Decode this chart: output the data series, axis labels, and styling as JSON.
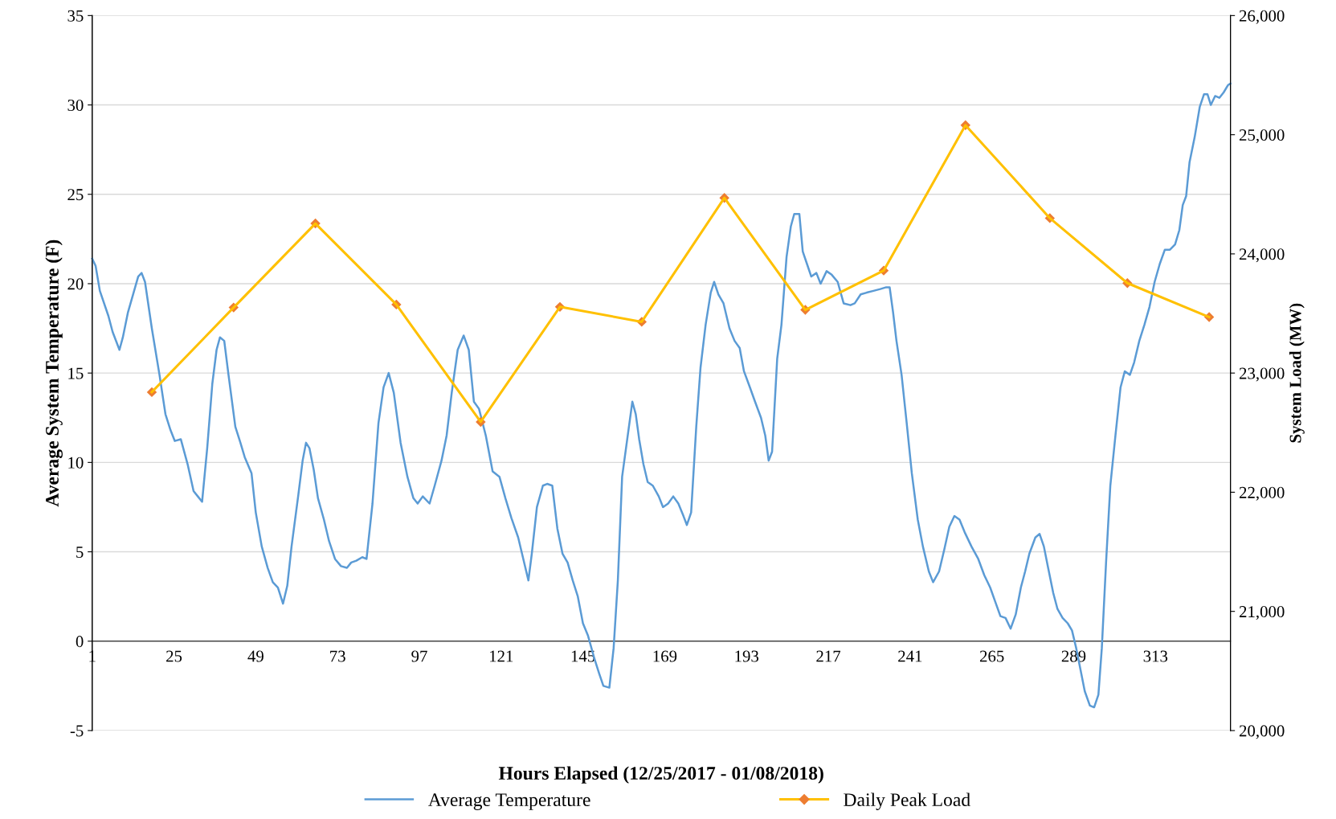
{
  "chart_data": {
    "type": "line",
    "xlabel": "Hours Elapsed (12/25/2017 - 01/08/2018)",
    "ylabel": "Average System Temperature (F)",
    "y2label": "System Load (MW)",
    "xlim": [
      1,
      335
    ],
    "xticks": [
      1,
      25,
      49,
      73,
      97,
      121,
      145,
      169,
      193,
      217,
      241,
      265,
      289,
      313
    ],
    "ylim": [
      -5,
      35
    ],
    "yticks": [
      -5,
      0,
      5,
      10,
      15,
      20,
      25,
      30,
      35
    ],
    "y2lim": [
      20000,
      26000
    ],
    "y2ticks": [
      {
        "value": 20000,
        "label": "20,000"
      },
      {
        "value": 21000,
        "label": "21,000"
      },
      {
        "value": 22000,
        "label": "22,000"
      },
      {
        "value": 23000,
        "label": "23,000"
      },
      {
        "value": 24000,
        "label": "24,000"
      },
      {
        "value": 25000,
        "label": "25,000"
      },
      {
        "value": 26000,
        "label": "26,000"
      }
    ],
    "grid": "y",
    "legend": "bottom",
    "series": [
      {
        "name": "Average Temperature",
        "color": "#5b9bd5",
        "marker": "none",
        "x": [
          1,
          2,
          3.25,
          5.75,
          7,
          9,
          10,
          11.5,
          13,
          14.5,
          15.5,
          16.5,
          18.5,
          20.75,
          22.5,
          24,
          25.25,
          27,
          29,
          30.75,
          32,
          33.25,
          34.75,
          36.25,
          37.5,
          38.5,
          39.75,
          41,
          43,
          44.5,
          45.75,
          47.75,
          49,
          50.75,
          52.5,
          54,
          55.5,
          57,
          58.25,
          59.5,
          61.5,
          62.75,
          63.75,
          64.75,
          66,
          67.25,
          69,
          70.5,
          72.25,
          74,
          75.75,
          77,
          78.5,
          80.25,
          81.5,
          83.25,
          85,
          86.5,
          88,
          89.5,
          91.5,
          93.5,
          95.25,
          96.5,
          98,
          100,
          101.5,
          103.5,
          105,
          106.5,
          108.25,
          110,
          111.5,
          113,
          114.5,
          116.5,
          118.5,
          120.5,
          122.25,
          124,
          126,
          127.5,
          129,
          130,
          131.5,
          133.25,
          134.5,
          136,
          137.5,
          139,
          140.5,
          142,
          143.5,
          145,
          146.5,
          148.25,
          149.75,
          151,
          152.75,
          154,
          155.25,
          156.5,
          158,
          159.5,
          160.5,
          161.5,
          162.75,
          164,
          165.5,
          167.25,
          168.5,
          170,
          171.5,
          173,
          174.5,
          175.5,
          176.75,
          178.25,
          179.5,
          181,
          182.5,
          183.5,
          184.75,
          186.25,
          188,
          189.5,
          191,
          192.25,
          194,
          195.5,
          197.25,
          198.5,
          199.5,
          200.5,
          202,
          203.25,
          204.75,
          206,
          207,
          208.5,
          209.5,
          210.75,
          212,
          213.5,
          214.75,
          216.5,
          218,
          219.75,
          221.5,
          223.5,
          224.75,
          226.5,
          228.25,
          230.25,
          232.25,
          234,
          235,
          236,
          237,
          238.5,
          240,
          241.5,
          243.25,
          244.75,
          246.5,
          247.75,
          249.5,
          251,
          252.5,
          254,
          255.5,
          257,
          259,
          261,
          262.75,
          264.5,
          266,
          267.5,
          269,
          270.5,
          272,
          273.5,
          274.75,
          276,
          277.75,
          279,
          280.25,
          281.5,
          283,
          284.25,
          285.75,
          287.25,
          288.5,
          289.75,
          291,
          292.25,
          293.75,
          295,
          296.25,
          297.25,
          298.5,
          299.75,
          301.25,
          302.75,
          304,
          305.5,
          306.75,
          308.25,
          309.75,
          311.25,
          312.75,
          314.25,
          315.75,
          317.25,
          318.75,
          320,
          321,
          322,
          323,
          324.5,
          326,
          327.25,
          328.25,
          329.25,
          330.5,
          331.75,
          333,
          334.25,
          335
        ],
        "values": [
          21.4,
          21.0,
          19.6,
          18.2,
          17.3,
          16.3,
          17.0,
          18.4,
          19.4,
          20.4,
          20.6,
          20.1,
          17.5,
          14.9,
          12.7,
          11.8,
          11.2,
          11.3,
          9.9,
          8.4,
          8.1,
          7.8,
          10.8,
          14.4,
          16.3,
          17.0,
          16.8,
          14.9,
          12.0,
          11.1,
          10.3,
          9.4,
          7.2,
          5.3,
          4.1,
          3.3,
          3.0,
          2.1,
          3.1,
          5.3,
          8.2,
          10.1,
          11.1,
          10.8,
          9.6,
          8.0,
          6.8,
          5.6,
          4.6,
          4.2,
          4.1,
          4.4,
          4.5,
          4.7,
          4.6,
          7.7,
          12.2,
          14.2,
          15.0,
          13.9,
          11.1,
          9.2,
          8.0,
          7.7,
          8.1,
          7.7,
          8.7,
          10.1,
          11.5,
          13.9,
          16.3,
          17.1,
          16.3,
          13.4,
          13.0,
          11.5,
          9.5,
          9.2,
          8.0,
          6.9,
          5.8,
          4.6,
          3.4,
          4.9,
          7.5,
          8.7,
          8.8,
          8.7,
          6.3,
          4.9,
          4.4,
          3.4,
          2.5,
          1.0,
          0.3,
          -0.9,
          -1.8,
          -2.5,
          -2.6,
          -0.4,
          3.4,
          9.2,
          11.3,
          13.4,
          12.7,
          11.3,
          9.9,
          8.9,
          8.7,
          8.1,
          7.5,
          7.7,
          8.1,
          7.7,
          7.0,
          6.5,
          7.2,
          12.0,
          15.3,
          17.7,
          19.5,
          20.1,
          19.4,
          18.9,
          17.5,
          16.8,
          16.4,
          15.1,
          14.2,
          13.4,
          12.5,
          11.5,
          10.1,
          10.6,
          15.8,
          17.7,
          21.5,
          23.2,
          23.9,
          23.9,
          21.8,
          21.1,
          20.4,
          20.6,
          20.0,
          20.7,
          20.5,
          20.1,
          18.9,
          18.8,
          18.9,
          19.4,
          19.5,
          19.6,
          19.7,
          19.8,
          19.8,
          18.4,
          16.8,
          14.9,
          12.2,
          9.4,
          6.8,
          5.3,
          3.9,
          3.3,
          3.9,
          5.1,
          6.4,
          7.0,
          6.8,
          6.1,
          5.3,
          4.6,
          3.7,
          3.0,
          2.2,
          1.4,
          1.3,
          0.7,
          1.5,
          3.0,
          3.9,
          4.9,
          5.8,
          6.0,
          5.3,
          4.1,
          2.7,
          1.8,
          1.3,
          1.0,
          0.6,
          -0.4,
          -1.6,
          -2.8,
          -3.6,
          -3.7,
          -3.0,
          -0.4,
          4.4,
          8.7,
          11.5,
          14.2,
          15.1,
          14.9,
          15.6,
          16.8,
          17.7,
          18.7,
          20.1,
          21.1,
          21.9,
          21.9,
          22.2,
          23.0,
          24.4,
          24.9,
          26.8,
          28.2,
          29.9,
          30.6,
          30.6,
          30.0,
          30.5,
          30.4,
          30.7,
          31.1,
          31.2
        ]
      },
      {
        "name": "Daily Peak Load",
        "color": "#ffc000",
        "axis": "y2",
        "marker": "diamond",
        "colors": [
          "#ed7d31",
          "#ed7d31",
          "#ed7d31",
          "#ed7d31",
          "#ed7d31",
          "#ed7d31",
          "#ed7d31",
          "#ed7d31",
          "#ed7d31",
          "#ed7d31",
          "#ed7d31",
          "#ed7d31",
          "#ed7d31",
          "#ed7d31"
        ],
        "x": [
          18.5,
          42.5,
          66.5,
          90.25,
          115,
          138.25,
          162.25,
          186.5,
          210.25,
          233.25,
          257.25,
          282,
          304.75,
          328.75
        ],
        "values": [
          22840,
          23550,
          24255,
          23575,
          22590,
          23555,
          23430,
          24470,
          23530,
          23860,
          25080,
          24300,
          23755,
          23470
        ]
      }
    ]
  }
}
